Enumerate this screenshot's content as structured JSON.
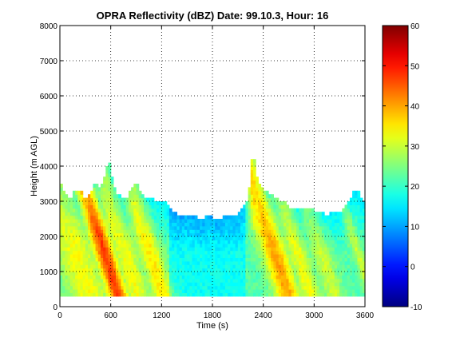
{
  "chart_data": {
    "type": "heatmap",
    "title": "OPRA Reflectivity (dBZ)  Date: 99.10.3, Hour: 16",
    "xlabel": "Time (s)",
    "ylabel": "Height (m AGL)",
    "xlim": [
      0,
      3600
    ],
    "ylim": [
      0,
      8000
    ],
    "x_ticks": [
      "0",
      "600",
      "1200",
      "1800",
      "2400",
      "3000",
      "3600"
    ],
    "y_ticks": [
      "0",
      "1000",
      "2000",
      "3000",
      "4000",
      "5000",
      "6000",
      "7000",
      "8000"
    ],
    "colorbar": {
      "range": [
        -10,
        60
      ],
      "ticks": [
        "-10",
        "0",
        "10",
        "20",
        "30",
        "40",
        "50",
        "60"
      ],
      "colormap": "jet"
    },
    "grid": "dotted",
    "echo": {
      "min_height": 300,
      "time_step": 30,
      "height_step": 100,
      "echo_top_profile": {
        "time": [
          0,
          60,
          120,
          180,
          240,
          300,
          360,
          420,
          480,
          540,
          570,
          600,
          630,
          660,
          720,
          780,
          840,
          900,
          960,
          1020,
          1080,
          1140,
          1200,
          1260,
          1320,
          1380,
          1440,
          1500,
          1560,
          1620,
          1680,
          1740,
          1800,
          1860,
          1920,
          1980,
          2040,
          2100,
          2160,
          2220,
          2280,
          2310,
          2340,
          2370,
          2400,
          2460,
          2520,
          2580,
          2640,
          2700,
          2760,
          2820,
          2880,
          2940,
          3000,
          3060,
          3120,
          3180,
          3240,
          3300,
          3360,
          3420,
          3480,
          3540,
          3570
        ],
        "height": [
          3500,
          3200,
          3000,
          3300,
          3300,
          3000,
          3200,
          3500,
          3300,
          3800,
          4200,
          3900,
          3500,
          3200,
          3100,
          3000,
          3300,
          3500,
          3200,
          3000,
          3100,
          2900,
          3000,
          2900,
          2700,
          2600,
          2500,
          2600,
          2600,
          2500,
          2400,
          2600,
          2500,
          2400,
          2500,
          2600,
          2500,
          2600,
          2800,
          3000,
          4500,
          3800,
          3500,
          3500,
          3300,
          3200,
          3100,
          3000,
          3000,
          2800,
          2800,
          2700,
          2800,
          2800,
          2700,
          2700,
          2600,
          2600,
          2700,
          2600,
          2800,
          3000,
          3300,
          3200,
          3000
        ]
      },
      "base_reflectivity_dBZ": 22,
      "cores": [
        {
          "peak_time": 240,
          "peak_dBZ": 33,
          "width_s": 240
        },
        {
          "peak_time": 570,
          "peak_dBZ": 47,
          "width_s": 120
        },
        {
          "peak_time": 810,
          "peak_dBZ": 33,
          "width_s": 150
        },
        {
          "peak_time": 1110,
          "peak_dBZ": 35,
          "width_s": 130
        },
        {
          "peak_time": 2580,
          "peak_dBZ": 40,
          "width_s": 150
        },
        {
          "peak_time": 2850,
          "peak_dBZ": 33,
          "width_s": 120
        },
        {
          "peak_time": 3130,
          "peak_dBZ": 30,
          "width_s": 120
        },
        {
          "peak_time": 3560,
          "peak_dBZ": 30,
          "width_s": 60
        }
      ],
      "core_tilt_s_per_km": 130,
      "weak_zone": {
        "time_range": [
          1300,
          2200
        ],
        "dBZ": 17
      }
    }
  }
}
